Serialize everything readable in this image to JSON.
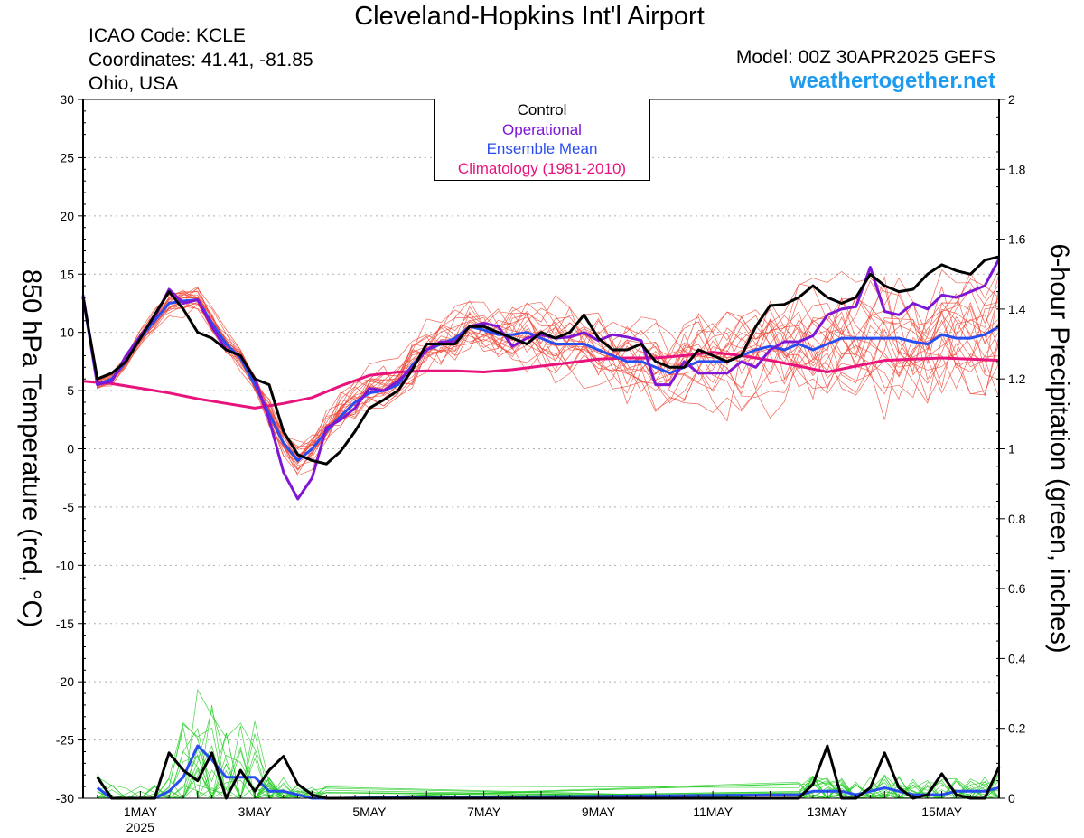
{
  "header": {
    "title": "Cleveland-Hopkins Int'l Airport",
    "icao": "ICAO Code: KCLE",
    "coords": "Coordinates: 41.41, -81.85",
    "region": "Ohio, USA",
    "model": "Model: 00Z 30APR2025 GEFS",
    "site": "weathertogether.net"
  },
  "legend": {
    "control": "Control",
    "operational": "Operational",
    "mean": "Ensemble Mean",
    "climo": "Climatology (1981-2010)"
  },
  "colors": {
    "control": "#000000",
    "operational": "#7f16d6",
    "mean": "#2a4df0",
    "climo": "#e8137c",
    "member_temp": "#f04a3a",
    "member_precip": "#22cc22",
    "site": "#1e9bef"
  },
  "axes": {
    "left_label": "850 hPa Temperature (red, °C)",
    "right_label": "6-hour Precipitation (green, inches)"
  },
  "chart_data": {
    "type": "line",
    "x_unit": "days since 30 Apr 2025 00Z",
    "x_range": [
      0,
      16.0
    ],
    "x_ticks": [
      {
        "x": 1,
        "label": "1MAY",
        "sub": "2025"
      },
      {
        "x": 3,
        "label": "3MAY"
      },
      {
        "x": 5,
        "label": "5MAY"
      },
      {
        "x": 7,
        "label": "7MAY"
      },
      {
        "x": 9,
        "label": "9MAY"
      },
      {
        "x": 11,
        "label": "11MAY"
      },
      {
        "x": 13,
        "label": "13MAY"
      },
      {
        "x": 15,
        "label": "15MAY"
      }
    ],
    "y_left": {
      "range": [
        -30,
        30
      ],
      "ticks": [
        30,
        25,
        20,
        15,
        10,
        5,
        0,
        -5,
        -10,
        -15,
        -20,
        -25,
        -30
      ]
    },
    "y_right": {
      "range": [
        0,
        2
      ],
      "ticks": [
        "2",
        "1.8",
        "1.6",
        "1.4",
        "1.2",
        "1",
        "0.8",
        "0.6",
        "0.4",
        "0.2",
        "0"
      ]
    },
    "grid": true,
    "series": [
      {
        "name": "Climatology (1981-2010)",
        "axis": "left",
        "x": [
          0,
          0.5,
          1,
          1.5,
          2,
          2.5,
          3,
          3.5,
          4,
          4.5,
          5,
          5.5,
          6,
          6.5,
          7,
          7.5,
          8,
          8.5,
          9,
          9.5,
          10,
          10.5,
          11,
          11.5,
          12,
          12.5,
          13,
          13.5,
          14,
          14.5,
          15,
          15.5,
          16
        ],
        "values": [
          5.8,
          5.6,
          5.2,
          4.8,
          4.3,
          3.9,
          3.5,
          3.9,
          4.4,
          5.4,
          6.3,
          6.6,
          6.7,
          6.7,
          6.6,
          6.8,
          7.1,
          7.4,
          7.7,
          7.8,
          7.8,
          8.0,
          8.3,
          8.0,
          7.6,
          7.1,
          6.6,
          7.1,
          7.6,
          7.7,
          7.8,
          7.7,
          7.6
        ]
      },
      {
        "name": "Control",
        "axis": "left",
        "x": [
          0,
          0.25,
          0.5,
          0.75,
          1,
          1.25,
          1.5,
          1.75,
          2,
          2.25,
          2.5,
          2.75,
          3,
          3.25,
          3.5,
          3.75,
          4,
          4.25,
          4.5,
          4.75,
          5,
          5.25,
          5.5,
          5.75,
          6,
          6.25,
          6.5,
          6.75,
          7,
          7.25,
          7.5,
          7.75,
          8,
          8.25,
          8.5,
          8.75,
          9,
          9.25,
          9.5,
          9.75,
          10,
          10.25,
          10.5,
          10.75,
          11,
          11.25,
          11.5,
          11.75,
          12,
          12.25,
          12.5,
          12.75,
          13,
          13.25,
          13.5,
          13.75,
          14,
          14.25,
          14.5,
          14.75,
          15,
          15.25,
          15.5,
          15.75,
          16
        ],
        "values": [
          13.0,
          6.0,
          6.5,
          7.5,
          9.5,
          11.5,
          13.5,
          12.0,
          10.0,
          9.5,
          8.5,
          8.0,
          6.0,
          5.5,
          1.5,
          -0.5,
          -1.0,
          -1.3,
          -0.2,
          1.5,
          3.5,
          4.2,
          5.0,
          6.8,
          9.0,
          9.0,
          9.0,
          10.5,
          10.5,
          10.0,
          9.5,
          9.0,
          10.0,
          9.5,
          10.0,
          11.5,
          9.5,
          8.5,
          8.5,
          9.0,
          7.5,
          7.0,
          7.0,
          8.5,
          8.0,
          7.5,
          8.0,
          10.5,
          12.3,
          12.4,
          13.0,
          14.0,
          13.0,
          12.5,
          13.0,
          15.0,
          14.0,
          13.5,
          13.7,
          15.0,
          15.8,
          15.3,
          15.0,
          16.2,
          16.5
        ]
      },
      {
        "name": "Operational",
        "axis": "left",
        "x": [
          0,
          0.25,
          0.5,
          0.75,
          1,
          1.25,
          1.5,
          1.75,
          2,
          2.25,
          2.5,
          2.75,
          3,
          3.25,
          3.5,
          3.75,
          4,
          4.25,
          4.5,
          4.75,
          5,
          5.25,
          5.5,
          5.75,
          6,
          6.25,
          6.5,
          6.75,
          7,
          7.25,
          7.5,
          7.75,
          8,
          8.25,
          8.5,
          8.75,
          9,
          9.25,
          9.5,
          9.75,
          10,
          10.25,
          10.5,
          10.75,
          11,
          11.25,
          11.5,
          11.75,
          12,
          12.25,
          12.5,
          12.75,
          13,
          13.25,
          13.5,
          13.75,
          14,
          14.25,
          14.5,
          14.75,
          15,
          15.25,
          15.5,
          15.75,
          16
        ],
        "values": [
          13.2,
          5.5,
          5.8,
          8.0,
          9.7,
          11.3,
          13.7,
          12.5,
          12.8,
          10.5,
          8.5,
          8.0,
          6.0,
          2.5,
          -2.0,
          -4.3,
          -2.5,
          1.8,
          2.5,
          3.5,
          5.2,
          5.0,
          5.8,
          7.0,
          8.5,
          9.2,
          9.2,
          10.5,
          10.8,
          10.5,
          8.8,
          9.5,
          9.8,
          9.5,
          9.6,
          10.0,
          9.3,
          9.8,
          9.6,
          9.3,
          5.5,
          5.5,
          7.5,
          6.5,
          6.5,
          6.5,
          7.5,
          7.0,
          8.5,
          9.2,
          9.2,
          9.7,
          11.5,
          12.0,
          12.2,
          15.6,
          11.8,
          11.5,
          12.5,
          12.0,
          13.2,
          13.0,
          13.5,
          14.0,
          16.3
        ]
      },
      {
        "name": "Ensemble Mean",
        "axis": "left",
        "x": [
          0,
          0.25,
          0.5,
          0.75,
          1,
          1.25,
          1.5,
          1.75,
          2,
          2.25,
          2.5,
          2.75,
          3,
          3.25,
          3.5,
          3.75,
          4,
          4.25,
          4.5,
          4.75,
          5,
          5.25,
          5.5,
          5.75,
          6,
          6.25,
          6.5,
          6.75,
          7,
          7.25,
          7.5,
          7.75,
          8,
          8.25,
          8.5,
          8.75,
          9,
          9.25,
          9.5,
          9.75,
          10,
          10.25,
          10.5,
          10.75,
          11,
          11.25,
          11.5,
          11.75,
          12,
          12.25,
          12.5,
          12.75,
          13,
          13.25,
          13.5,
          13.75,
          14,
          14.25,
          14.5,
          14.75,
          15,
          15.25,
          15.5,
          15.75,
          16
        ],
        "values": [
          13.0,
          5.5,
          6.0,
          7.5,
          9.5,
          11.0,
          12.5,
          12.7,
          12.8,
          10.8,
          9.0,
          7.8,
          5.5,
          3.0,
          0.5,
          -1.0,
          0.0,
          1.5,
          2.8,
          4.0,
          4.8,
          5.0,
          5.5,
          7.2,
          8.5,
          9.0,
          9.5,
          10.5,
          10.2,
          9.8,
          9.8,
          10.0,
          9.5,
          9.0,
          9.0,
          9.0,
          8.5,
          8.0,
          7.5,
          7.5,
          7.0,
          6.5,
          7.0,
          7.5,
          7.5,
          7.5,
          8.0,
          8.5,
          8.8,
          8.5,
          9.0,
          8.5,
          9.0,
          9.5,
          9.5,
          9.5,
          9.5,
          9.5,
          9.2,
          9.0,
          9.8,
          9.5,
          9.5,
          9.8,
          10.5
        ]
      },
      {
        "name": "Control",
        "axis": "right",
        "x": [
          0.25,
          0.5,
          0.75,
          1,
          1.25,
          1.5,
          1.75,
          2,
          2.25,
          2.5,
          2.75,
          3,
          3.25,
          3.5,
          3.75,
          4,
          4.25,
          12.5,
          12.75,
          13,
          13.25,
          13.5,
          13.75,
          14,
          14.25,
          14.5,
          14.75,
          15,
          15.25,
          15.5,
          15.75,
          16
        ],
        "values": [
          0.06,
          0.0,
          0.0,
          0.0,
          0.0,
          0.13,
          0.08,
          0.05,
          0.13,
          0.0,
          0.08,
          0.02,
          0.08,
          0.12,
          0.04,
          0.01,
          0.0,
          0.0,
          0.04,
          0.15,
          0.0,
          0.0,
          0.03,
          0.13,
          0.03,
          0.0,
          0.01,
          0.07,
          0.01,
          0.0,
          0.0,
          0.09
        ]
      },
      {
        "name": "Ensemble Mean",
        "axis": "right",
        "x": [
          0.25,
          0.5,
          0.75,
          1,
          1.25,
          1.5,
          1.75,
          2,
          2.25,
          2.5,
          2.75,
          3,
          3.25,
          3.5,
          3.75,
          4,
          4.25,
          12.5,
          12.75,
          13,
          13.25,
          13.5,
          13.75,
          14,
          14.25,
          14.5,
          14.75,
          15,
          15.25,
          15.5,
          15.75,
          16
        ],
        "values": [
          0.03,
          0.0,
          0.0,
          0.0,
          0.0,
          0.02,
          0.06,
          0.15,
          0.11,
          0.06,
          0.06,
          0.06,
          0.02,
          0.02,
          0.01,
          0.0,
          0.0,
          0.01,
          0.02,
          0.02,
          0.02,
          0.01,
          0.02,
          0.03,
          0.02,
          0.01,
          0.01,
          0.01,
          0.02,
          0.02,
          0.02,
          0.03
        ]
      }
    ]
  }
}
